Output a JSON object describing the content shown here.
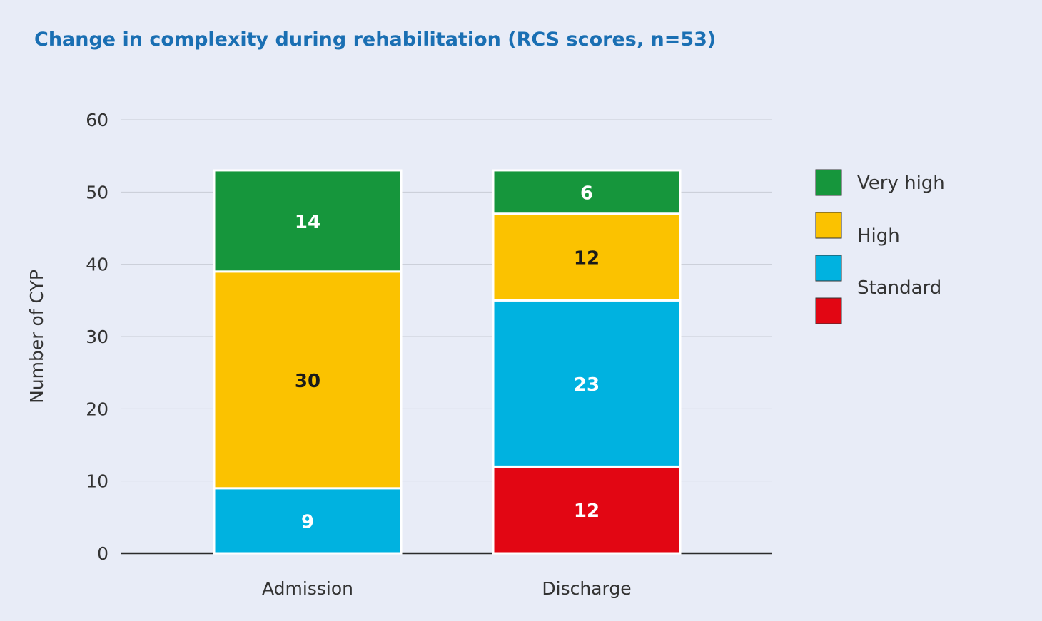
{
  "chart_data": {
    "type": "bar",
    "stacked": true,
    "title": "Change in complexity during rehabilitation (RCS scores, n=53)",
    "xlabel": "",
    "ylabel": "Number of CYP",
    "ylim": [
      0,
      60
    ],
    "yticks": [
      0,
      10,
      20,
      30,
      40,
      50,
      60
    ],
    "grid": true,
    "legend_position": "right",
    "categories": [
      "Admission",
      "Discharge"
    ],
    "series": [
      {
        "name": "",
        "key": "low",
        "color": "#e20613",
        "values": [
          0,
          12
        ]
      },
      {
        "name": "Standard",
        "key": "standard",
        "color": "#00b2e0",
        "values": [
          9,
          23
        ]
      },
      {
        "name": "High",
        "key": "high",
        "color": "#fbc200",
        "values": [
          30,
          12
        ]
      },
      {
        "name": "Very high",
        "key": "very_high",
        "color": "#16963c",
        "values": [
          14,
          6
        ]
      }
    ],
    "legend_order": [
      "very_high",
      "high",
      "standard",
      "low"
    ],
    "label_colors": {
      "low": "#ffffff",
      "standard": "#ffffff",
      "high": "#1a1a1a",
      "very_high": "#ffffff"
    }
  }
}
